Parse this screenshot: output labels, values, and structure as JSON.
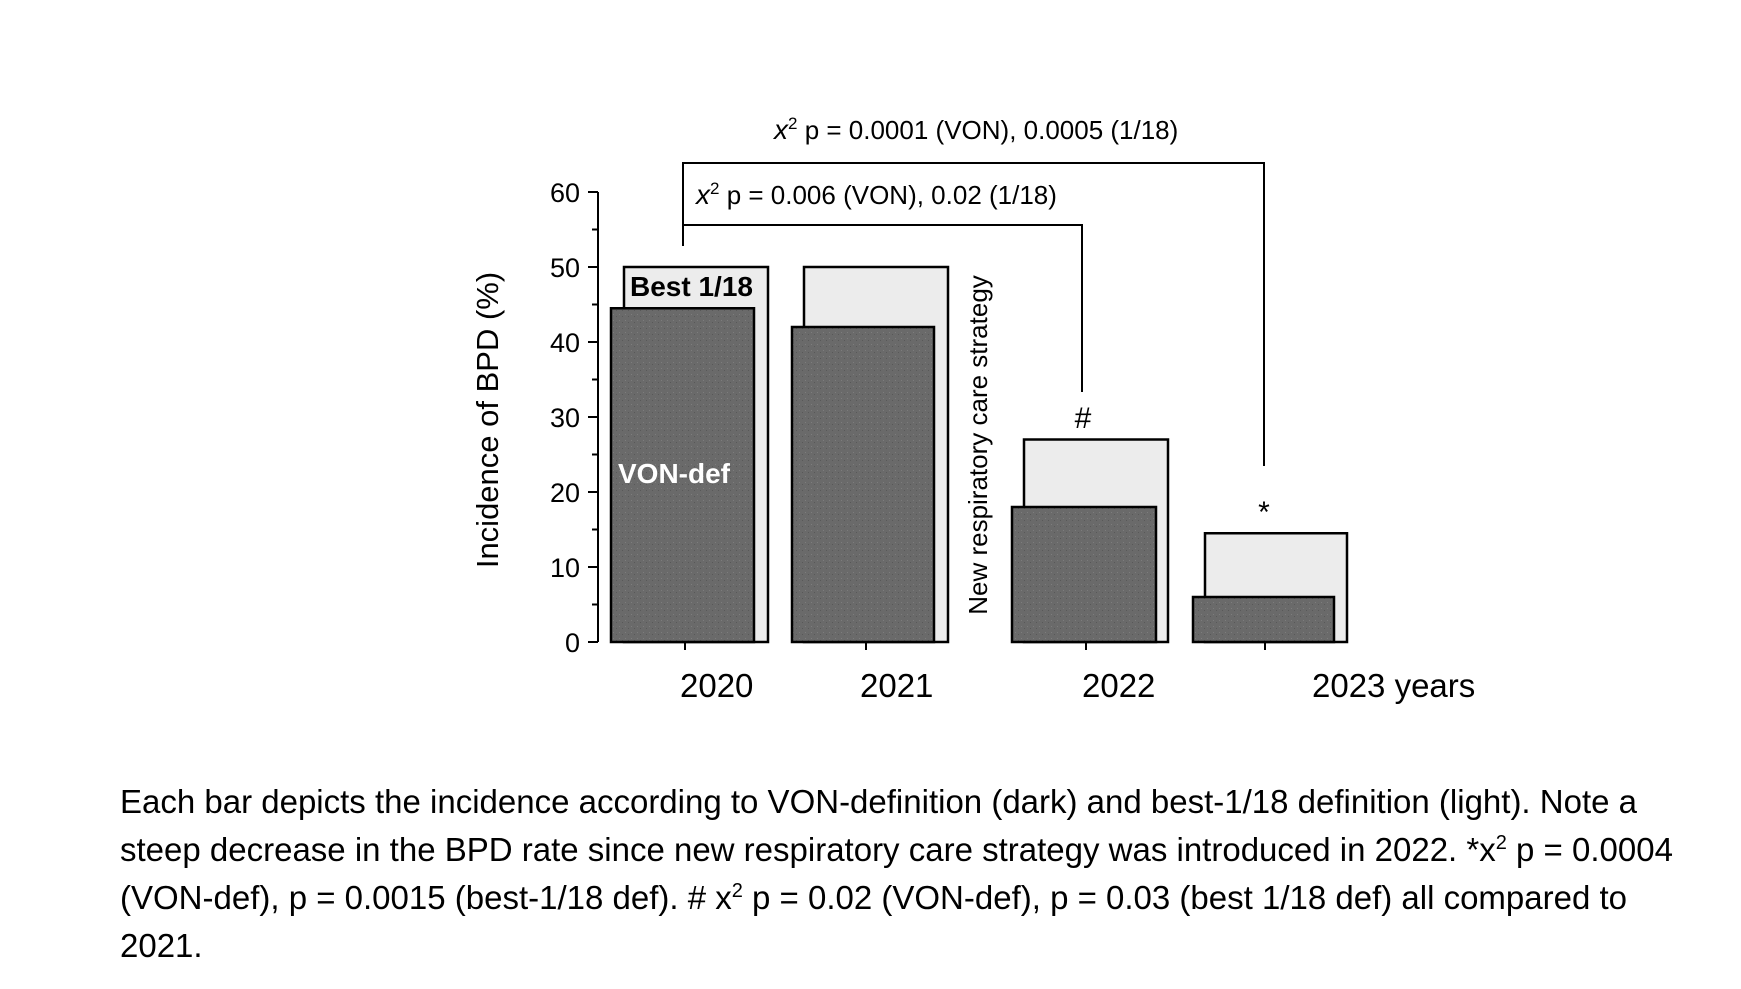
{
  "chart_data": {
    "type": "bar",
    "categories": [
      "2020",
      "2021",
      "2022",
      "2023 years"
    ],
    "series": [
      {
        "name": "Best 1/18",
        "values": [
          50,
          50,
          27,
          14.5
        ],
        "color": "#ececec"
      },
      {
        "name": "VON-def",
        "values": [
          44.5,
          42,
          18,
          6
        ],
        "color": "#6a6a6a"
      }
    ],
    "ylabel": "Incidence of BPD (%)",
    "ylim": [
      0,
      60
    ],
    "yticks": [
      "0",
      "10",
      "20",
      "30",
      "40",
      "50",
      "60"
    ],
    "divider_label": "New respiratory care strategy",
    "annotations": [
      {
        "mark": "#",
        "category": "2022"
      },
      {
        "mark": "*",
        "category": "2023 years"
      }
    ],
    "brackets": [
      {
        "from": "2020",
        "to": "2022",
        "prefix": "x",
        "sup": "2",
        "text": " p = 0.006 (VON), 0.02 (1/18)"
      },
      {
        "from": "2020",
        "to": "2023 years",
        "prefix": "x",
        "sup": "2",
        "text": " p = 0.0001 (VON), 0.0005 (1/18)"
      }
    ],
    "legend_placement": "inside first bar",
    "grid": false
  },
  "caption": {
    "part1": "Each bar depicts the incidence according to VON-definition (dark) and best-1/18 definition (light). Note a steep decrease in the BPD rate since new respiratory care strategy was introduced in 2022. *x",
    "sup1": "2",
    "part2": " p = 0.0004 (VON-def), p = 0.0015 (best-1/18 def). # x",
    "sup2": "2",
    "part3": " p = 0.02 (VON-def), p = 0.03 (best 1/18 def) all compared to 2021."
  }
}
